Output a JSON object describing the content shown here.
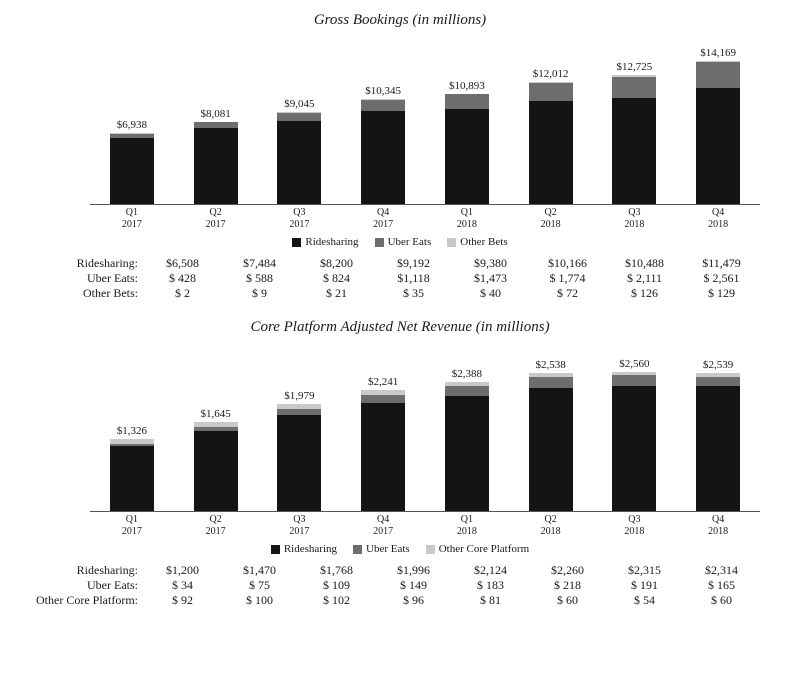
{
  "colors": {
    "series1": "#141414",
    "series2": "#6d6d6d",
    "series3": "#c9c9c9",
    "background": "#ffffff",
    "text": "#1a1a1a"
  },
  "charts": [
    {
      "title": "Gross Bookings (in millions)",
      "type": "stacked-bar",
      "yMax": 15000,
      "barWidthPx": 44,
      "chartHeightPx": 165,
      "series": [
        {
          "key": "s1",
          "label": "Ridesharing",
          "color": "#141414"
        },
        {
          "key": "s2",
          "label": "Uber Eats",
          "color": "#6d6d6d"
        },
        {
          "key": "s3",
          "label": "Other Bets",
          "color": "#c9c9c9"
        }
      ],
      "categories": [
        {
          "q": "Q1",
          "y": "2017",
          "total": "$6,938",
          "totalNum": 6938,
          "s1": 6508,
          "s2": 428,
          "s3": 2,
          "s1f": "$6,508",
          "s2f": "$  428",
          "s3f": "$     2"
        },
        {
          "q": "Q2",
          "y": "2017",
          "total": "$8,081",
          "totalNum": 8081,
          "s1": 7484,
          "s2": 588,
          "s3": 9,
          "s1f": "$7,484",
          "s2f": "$  588",
          "s3f": "$     9"
        },
        {
          "q": "Q3",
          "y": "2017",
          "total": "$9,045",
          "totalNum": 9045,
          "s1": 8200,
          "s2": 824,
          "s3": 21,
          "s1f": "$8,200",
          "s2f": "$  824",
          "s3f": "$   21"
        },
        {
          "q": "Q4",
          "y": "2017",
          "total": "$10,345",
          "totalNum": 10345,
          "s1": 9192,
          "s2": 1118,
          "s3": 35,
          "s1f": "$9,192",
          "s2f": "$1,118",
          "s3f": "$   35"
        },
        {
          "q": "Q1",
          "y": "2018",
          "total": "$10,893",
          "totalNum": 10893,
          "s1": 9380,
          "s2": 1473,
          "s3": 40,
          "s1f": "$9,380",
          "s2f": "$1,473",
          "s3f": "$   40"
        },
        {
          "q": "Q2",
          "y": "2018",
          "total": "$12,012",
          "totalNum": 12012,
          "s1": 10166,
          "s2": 1774,
          "s3": 72,
          "s1f": "$10,166",
          "s2f": "$ 1,774",
          "s3f": "$   72"
        },
        {
          "q": "Q3",
          "y": "2018",
          "total": "$12,725",
          "totalNum": 12725,
          "s1": 10488,
          "s2": 2111,
          "s3": 126,
          "s1f": "$10,488",
          "s2f": "$ 2,111",
          "s3f": "$  126"
        },
        {
          "q": "Q4",
          "y": "2018",
          "total": "$14,169",
          "totalNum": 14169,
          "s1": 11479,
          "s2": 2561,
          "s3": 129,
          "s1f": "$11,479",
          "s2f": "$ 2,561",
          "s3f": "$  129"
        }
      ],
      "tableRows": [
        {
          "label": "Ridesharing:",
          "cells": [
            "$6,508",
            "$7,484",
            "$8,200",
            "$9,192",
            "$9,380",
            "$10,166",
            "$10,488",
            "$11,479"
          ]
        },
        {
          "label": "Uber Eats:",
          "cells": [
            "$  428",
            "$  588",
            "$  824",
            "$1,118",
            "$1,473",
            "$ 1,774",
            "$ 2,111",
            "$ 2,561"
          ]
        },
        {
          "label": "Other Bets:",
          "cells": [
            "$     2",
            "$     9",
            "$   21",
            "$   35",
            "$   40",
            "$   72",
            "$  126",
            "$  129"
          ]
        }
      ]
    },
    {
      "title": "Core Platform Adjusted Net Revenue (in millions)",
      "type": "stacked-bar",
      "yMax": 2800,
      "barWidthPx": 44,
      "chartHeightPx": 165,
      "series": [
        {
          "key": "s1",
          "label": "Ridesharing",
          "color": "#141414"
        },
        {
          "key": "s2",
          "label": "Uber Eats",
          "color": "#6d6d6d"
        },
        {
          "key": "s3",
          "label": "Other Core Platform",
          "color": "#c9c9c9"
        }
      ],
      "categories": [
        {
          "q": "Q1",
          "y": "2017",
          "total": "$1,326",
          "totalNum": 1326,
          "s1": 1200,
          "s2": 34,
          "s3": 92,
          "s1f": "$1,200",
          "s2f": "$   34",
          "s3f": "$   92"
        },
        {
          "q": "Q2",
          "y": "2017",
          "total": "$1,645",
          "totalNum": 1645,
          "s1": 1470,
          "s2": 75,
          "s3": 100,
          "s1f": "$1,470",
          "s2f": "$   75",
          "s3f": "$  100"
        },
        {
          "q": "Q3",
          "y": "2017",
          "total": "$1,979",
          "totalNum": 1979,
          "s1": 1768,
          "s2": 109,
          "s3": 102,
          "s1f": "$1,768",
          "s2f": "$  109",
          "s3f": "$  102"
        },
        {
          "q": "Q4",
          "y": "2017",
          "total": "$2,241",
          "totalNum": 2241,
          "s1": 1996,
          "s2": 149,
          "s3": 96,
          "s1f": "$1,996",
          "s2f": "$  149",
          "s3f": "$   96"
        },
        {
          "q": "Q1",
          "y": "2018",
          "total": "$2,388",
          "totalNum": 2388,
          "s1": 2124,
          "s2": 183,
          "s3": 81,
          "s1f": "$2,124",
          "s2f": "$  183",
          "s3f": "$   81"
        },
        {
          "q": "Q2",
          "y": "2018",
          "total": "$2,538",
          "totalNum": 2538,
          "s1": 2260,
          "s2": 218,
          "s3": 60,
          "s1f": "$2,260",
          "s2f": "$  218",
          "s3f": "$   60"
        },
        {
          "q": "Q3",
          "y": "2018",
          "total": "$2,560",
          "totalNum": 2560,
          "s1": 2315,
          "s2": 191,
          "s3": 54,
          "s1f": "$2,315",
          "s2f": "$  191",
          "s3f": "$   54"
        },
        {
          "q": "Q4",
          "y": "2018",
          "total": "$2,539",
          "totalNum": 2539,
          "s1": 2314,
          "s2": 165,
          "s3": 60,
          "s1f": "$2,314",
          "s2f": "$  165",
          "s3f": "$   60"
        }
      ],
      "tableRows": [
        {
          "label": "Ridesharing:",
          "cells": [
            "$1,200",
            "$1,470",
            "$1,768",
            "$1,996",
            "$2,124",
            "$2,260",
            "$2,315",
            "$2,314"
          ]
        },
        {
          "label": "Uber Eats:",
          "cells": [
            "$   34",
            "$   75",
            "$  109",
            "$  149",
            "$  183",
            "$  218",
            "$  191",
            "$  165"
          ]
        },
        {
          "label": "Other Core Platform:",
          "cells": [
            "$   92",
            "$  100",
            "$  102",
            "$   96",
            "$   81",
            "$   60",
            "$   54",
            "$   60"
          ]
        }
      ]
    }
  ]
}
